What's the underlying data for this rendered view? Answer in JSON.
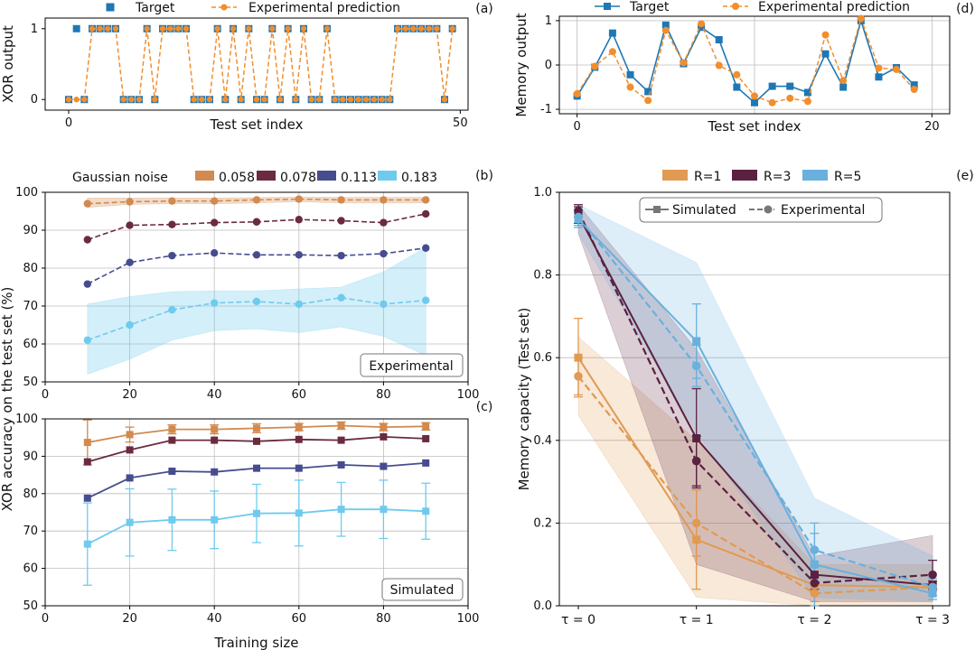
{
  "chart_data": [
    {
      "id": "a",
      "type": "line",
      "panel_label": "(a)",
      "xlabel": "Test set index",
      "ylabel": "XOR output",
      "xlim": [
        -3,
        51
      ],
      "ylim": [
        -0.15,
        1.15
      ],
      "xticks": [
        0,
        50
      ],
      "yticks": [
        0,
        1
      ],
      "legend": {
        "placement": "top",
        "entries": [
          "Target",
          "Experimental prediction"
        ]
      },
      "series": [
        {
          "name": "Target",
          "style": "markers-only",
          "values": [
            0,
            1,
            0,
            1,
            1,
            1,
            1,
            0,
            0,
            0,
            1,
            0,
            1,
            1,
            1,
            1,
            0,
            0,
            0,
            1,
            0,
            1,
            0,
            1,
            0,
            0,
            1,
            0,
            1,
            0,
            1,
            0,
            0,
            1,
            0,
            0,
            0,
            0,
            0,
            0,
            0,
            0,
            1,
            1,
            1,
            1,
            1,
            1,
            0,
            1
          ]
        },
        {
          "name": "Experimental prediction",
          "style": "dashed",
          "values": [
            0,
            0,
            0,
            1,
            1,
            1,
            1,
            0,
            0,
            0,
            1,
            0,
            1,
            1,
            1,
            1,
            0,
            0,
            0,
            1,
            0,
            1,
            0,
            1,
            0,
            0,
            1,
            0,
            1,
            0,
            1,
            0,
            0,
            1,
            0,
            0,
            0,
            0,
            0,
            0,
            0,
            0,
            1,
            1,
            1,
            1,
            1,
            1,
            0,
            1
          ]
        }
      ]
    },
    {
      "id": "d",
      "type": "line",
      "panel_label": "(d)",
      "xlabel": "Test set index",
      "ylabel": "Memory output",
      "xlim": [
        -1,
        21
      ],
      "ylim": [
        -1.1,
        1.1
      ],
      "xticks": [
        0,
        20
      ],
      "yticks": [
        -1,
        0,
        1
      ],
      "legend": {
        "placement": "top",
        "entries": [
          "Target",
          "Experimental prediction"
        ]
      },
      "series": [
        {
          "name": "Target",
          "style": "solid",
          "values": [
            -0.7,
            -0.05,
            0.72,
            -0.22,
            -0.6,
            0.9,
            0.03,
            0.85,
            0.57,
            -0.5,
            -0.85,
            -0.48,
            -0.48,
            -0.62,
            0.25,
            -0.5,
            1.0,
            -0.27,
            -0.06,
            -0.45
          ]
        },
        {
          "name": "Experimental prediction",
          "style": "dashed",
          "values": [
            -0.65,
            -0.03,
            0.3,
            -0.5,
            -0.8,
            0.78,
            0.05,
            0.93,
            -0.01,
            -0.22,
            -0.7,
            -0.85,
            -0.75,
            -0.82,
            0.68,
            -0.35,
            1.05,
            -0.07,
            -0.1,
            -0.55
          ]
        }
      ]
    },
    {
      "id": "b",
      "type": "line",
      "panel_label": "(b)",
      "annotation": "Experimental",
      "xlabel": "",
      "ylabel": "XOR accuracy on the test set (%)",
      "xlim": [
        0,
        100
      ],
      "ylim": [
        50,
        100
      ],
      "xticks": [
        0,
        20,
        40,
        60,
        80,
        100
      ],
      "yticks": [
        50,
        60,
        70,
        80,
        90,
        100
      ],
      "grid": true,
      "legend": {
        "placement": "top",
        "title": "Gaussian noise"
      },
      "x": [
        10,
        20,
        30,
        40,
        50,
        60,
        70,
        80,
        90
      ],
      "series": [
        {
          "name": "0.058",
          "color": "#d18a4f",
          "values": [
            97.0,
            97.5,
            97.7,
            97.7,
            98.0,
            98.2,
            98.0,
            98.0,
            98.0
          ],
          "band_low": [
            96.0,
            96.8,
            97.0,
            97.0,
            97.2,
            97.5,
            97.2,
            97.2,
            97.2
          ],
          "band_high": [
            98.5,
            98.5,
            98.5,
            98.5,
            98.6,
            98.8,
            98.7,
            98.7,
            98.7
          ]
        },
        {
          "name": "0.078",
          "color": "#6a2b3f",
          "values": [
            87.5,
            91.3,
            91.5,
            92.0,
            92.2,
            92.8,
            92.5,
            92.0,
            94.3
          ]
        },
        {
          "name": "0.113",
          "color": "#474c8f",
          "values": [
            75.8,
            81.5,
            83.3,
            84.0,
            83.5,
            83.5,
            83.3,
            83.8,
            85.3
          ]
        },
        {
          "name": "0.183",
          "color": "#6ecbee",
          "values": [
            61.0,
            65.0,
            69.0,
            70.8,
            71.2,
            70.5,
            72.2,
            70.5,
            71.5
          ],
          "band_low": [
            52.0,
            56.0,
            61.0,
            63.5,
            64.0,
            63.0,
            64.5,
            62.0,
            57.0
          ],
          "band_high": [
            70.5,
            72.5,
            73.8,
            74.0,
            74.0,
            74.5,
            75.0,
            79.0,
            85.5
          ]
        }
      ]
    },
    {
      "id": "c",
      "type": "line",
      "panel_label": "(c)",
      "annotation": "Simulated",
      "xlabel": "Training size",
      "ylabel": "",
      "xlim": [
        0,
        100
      ],
      "ylim": [
        50,
        100
      ],
      "xticks": [
        0,
        20,
        40,
        60,
        80,
        100
      ],
      "yticks": [
        50,
        60,
        70,
        80,
        90,
        100
      ],
      "grid": true,
      "x": [
        10,
        20,
        30,
        40,
        50,
        60,
        70,
        80,
        90
      ],
      "series": [
        {
          "name": "0.058",
          "color": "#d18a4f",
          "values": [
            93.7,
            95.8,
            97.2,
            97.2,
            97.5,
            97.8,
            98.2,
            97.8,
            98.0
          ],
          "err": [
            6.0,
            2.0,
            1.2,
            1.2,
            1.2,
            1.0,
            1.0,
            1.0,
            1.0
          ]
        },
        {
          "name": "0.078",
          "color": "#6a2b3f",
          "values": [
            88.5,
            91.7,
            94.3,
            94.3,
            94.0,
            94.5,
            94.3,
            95.2,
            94.7
          ]
        },
        {
          "name": "0.113",
          "color": "#474c8f",
          "values": [
            78.8,
            84.2,
            86.0,
            85.8,
            86.8,
            86.8,
            87.7,
            87.3,
            88.2
          ]
        },
        {
          "name": "0.183",
          "color": "#6ecbee",
          "values": [
            66.5,
            72.3,
            73.0,
            73.0,
            74.7,
            74.8,
            75.8,
            75.8,
            75.3
          ],
          "err": [
            11.0,
            9.0,
            8.2,
            7.7,
            7.8,
            8.8,
            7.2,
            7.8,
            7.5
          ]
        }
      ]
    },
    {
      "id": "e",
      "type": "line",
      "panel_label": "(e)",
      "xlabel": "",
      "ylabel": "Memory capacity (Test set)",
      "categories": [
        "τ = 0",
        "τ = 1",
        "τ = 2",
        "τ = 3"
      ],
      "ylim": [
        0.0,
        1.0
      ],
      "yticks": [
        0.0,
        0.2,
        0.4,
        0.6,
        0.8,
        1.0
      ],
      "grid": true,
      "legend": {
        "placement": "top",
        "entries": [
          "R=1",
          "R=3",
          "R=5"
        ]
      },
      "style_legend": [
        "Simulated",
        "Experimental"
      ],
      "series": [
        {
          "name": "R=1",
          "color": "#e09a52",
          "simulated": [
            0.6,
            0.16,
            0.05,
            0.045
          ],
          "sim_err": [
            0.095,
            0.12,
            0.02,
            0.01
          ],
          "experimental": [
            0.555,
            0.2,
            0.03,
            0.045
          ],
          "exp_err": [
            0.045,
            0.08,
            0.02,
            0.01
          ],
          "band_low": [
            0.46,
            0.02,
            0.0,
            0.0
          ],
          "band_high": [
            0.65,
            0.4,
            0.1,
            0.1
          ]
        },
        {
          "name": "R=3",
          "color": "#5a2141",
          "simulated": [
            0.945,
            0.405,
            0.075,
            0.05
          ],
          "sim_err": [
            0.02,
            0.12,
            0.02,
            0.01
          ],
          "experimental": [
            0.955,
            0.35,
            0.055,
            0.075
          ],
          "exp_err": [
            0.015,
            0.06,
            0.015,
            0.035
          ],
          "band_low": [
            0.9,
            0.1,
            0.01,
            0.01
          ],
          "band_high": [
            0.97,
            0.62,
            0.12,
            0.17
          ]
        },
        {
          "name": "R=5",
          "color": "#6ab0dd",
          "simulated": [
            0.935,
            0.64,
            0.1,
            0.03
          ],
          "sim_err": [
            0.02,
            0.09,
            0.1,
            0.015
          ],
          "experimental": [
            0.94,
            0.58,
            0.135,
            0.045
          ],
          "exp_err": [
            0.02,
            0.05,
            0.04,
            0.02
          ],
          "band_low": [
            0.9,
            0.42,
            0.02,
            0.01
          ],
          "band_high": [
            0.97,
            0.83,
            0.26,
            0.12
          ]
        }
      ]
    }
  ]
}
